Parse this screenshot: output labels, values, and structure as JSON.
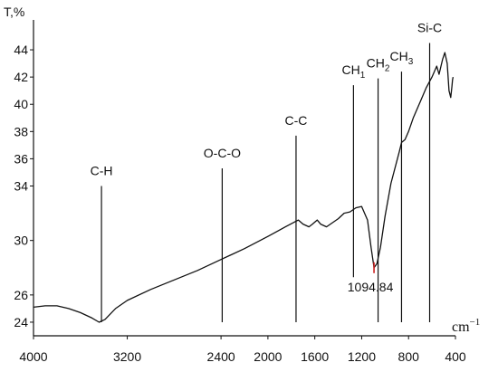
{
  "chart_data": {
    "type": "line",
    "ylabel": "T,%",
    "xlabel_text": "cm",
    "xlabel_exp": "−1",
    "xlim": [
      4000,
      400
    ],
    "ylim": [
      23,
      45
    ],
    "x_ticks": [
      {
        "v": 4000,
        "label": "4000"
      },
      {
        "v": 3200,
        "label": "3200"
      },
      {
        "v": 2400,
        "label": "2400"
      },
      {
        "v": 2000,
        "label": "2000"
      },
      {
        "v": 1600,
        "label": "1600"
      },
      {
        "v": 1200,
        "label": "1200"
      },
      {
        "v": 800,
        "label": "800"
      },
      {
        "v": 400,
        "label": "400"
      }
    ],
    "y_ticks": [
      {
        "v": 24,
        "label": "24"
      },
      {
        "v": 26,
        "label": "26"
      },
      {
        "v": 30,
        "label": "30"
      },
      {
        "v": 34,
        "label": "34"
      },
      {
        "v": 36,
        "label": "36"
      },
      {
        "v": 38,
        "label": "38"
      },
      {
        "v": 40,
        "label": "40"
      },
      {
        "v": 42,
        "label": "42"
      },
      {
        "v": 44,
        "label": "44"
      }
    ],
    "series": [
      {
        "color": "#111111",
        "points": [
          [
            4000,
            25.1
          ],
          [
            3900,
            25.2
          ],
          [
            3800,
            25.2
          ],
          [
            3700,
            25.0
          ],
          [
            3600,
            24.7
          ],
          [
            3500,
            24.3
          ],
          [
            3440,
            24.0
          ],
          [
            3390,
            24.2
          ],
          [
            3300,
            25.0
          ],
          [
            3200,
            25.6
          ],
          [
            3000,
            26.4
          ],
          [
            2800,
            27.1
          ],
          [
            2600,
            27.8
          ],
          [
            2400,
            28.6
          ],
          [
            2200,
            29.4
          ],
          [
            2000,
            30.3
          ],
          [
            1850,
            31.0
          ],
          [
            1740,
            31.5
          ],
          [
            1700,
            31.2
          ],
          [
            1650,
            31.0
          ],
          [
            1620,
            31.2
          ],
          [
            1580,
            31.5
          ],
          [
            1550,
            31.2
          ],
          [
            1500,
            31.0
          ],
          [
            1450,
            31.3
          ],
          [
            1400,
            31.6
          ],
          [
            1350,
            32.0
          ],
          [
            1300,
            32.1
          ],
          [
            1250,
            32.4
          ],
          [
            1200,
            32.5
          ],
          [
            1150,
            31.5
          ],
          [
            1120,
            29.5
          ],
          [
            1094.84,
            28.0
          ],
          [
            1070,
            28.3
          ],
          [
            1040,
            29.5
          ],
          [
            1000,
            31.8
          ],
          [
            950,
            34.2
          ],
          [
            880,
            36.5
          ],
          [
            860,
            37.2
          ],
          [
            830,
            37.4
          ],
          [
            800,
            38.0
          ],
          [
            760,
            39.0
          ],
          [
            700,
            40.2
          ],
          [
            650,
            41.2
          ],
          [
            600,
            42.0
          ],
          [
            560,
            42.8
          ],
          [
            540,
            42.2
          ],
          [
            510,
            43.3
          ],
          [
            490,
            43.8
          ],
          [
            470,
            43.0
          ],
          [
            455,
            41.0
          ],
          [
            440,
            40.5
          ],
          [
            430,
            41.3
          ],
          [
            425,
            41.8
          ],
          [
            420,
            42.0
          ]
        ]
      }
    ],
    "annotations": [
      {
        "label": "C-H",
        "sub": "",
        "x": 3420,
        "y_low": 24.0,
        "y_high": 34.0,
        "label_y": 34.8
      },
      {
        "label": "O-C-O",
        "sub": "",
        "x": 2390,
        "y_low": 24.0,
        "y_high": 35.3,
        "label_y": 36.1
      },
      {
        "label": "C-C",
        "sub": "",
        "x": 1760,
        "y_low": 24.0,
        "y_high": 37.7,
        "label_y": 38.5
      },
      {
        "label": "CH",
        "sub": "1",
        "x": 1270,
        "y_low": 27.3,
        "y_high": 41.4,
        "label_y": 42.2
      },
      {
        "label": "CH",
        "sub": "2",
        "x": 1060,
        "y_low": 24.0,
        "y_high": 41.9,
        "label_y": 42.7
      },
      {
        "label": "CH",
        "sub": "3",
        "x": 860,
        "y_low": 24.0,
        "y_high": 42.4,
        "label_y": 43.2
      },
      {
        "label": "Si-C",
        "sub": "",
        "x": 620,
        "y_low": 24.0,
        "y_high": 44.5,
        "label_y": 45.3
      }
    ],
    "peak_label": {
      "text": "1094.84",
      "x": 1094.84,
      "y": 28.0,
      "color": "#cc2222"
    }
  }
}
